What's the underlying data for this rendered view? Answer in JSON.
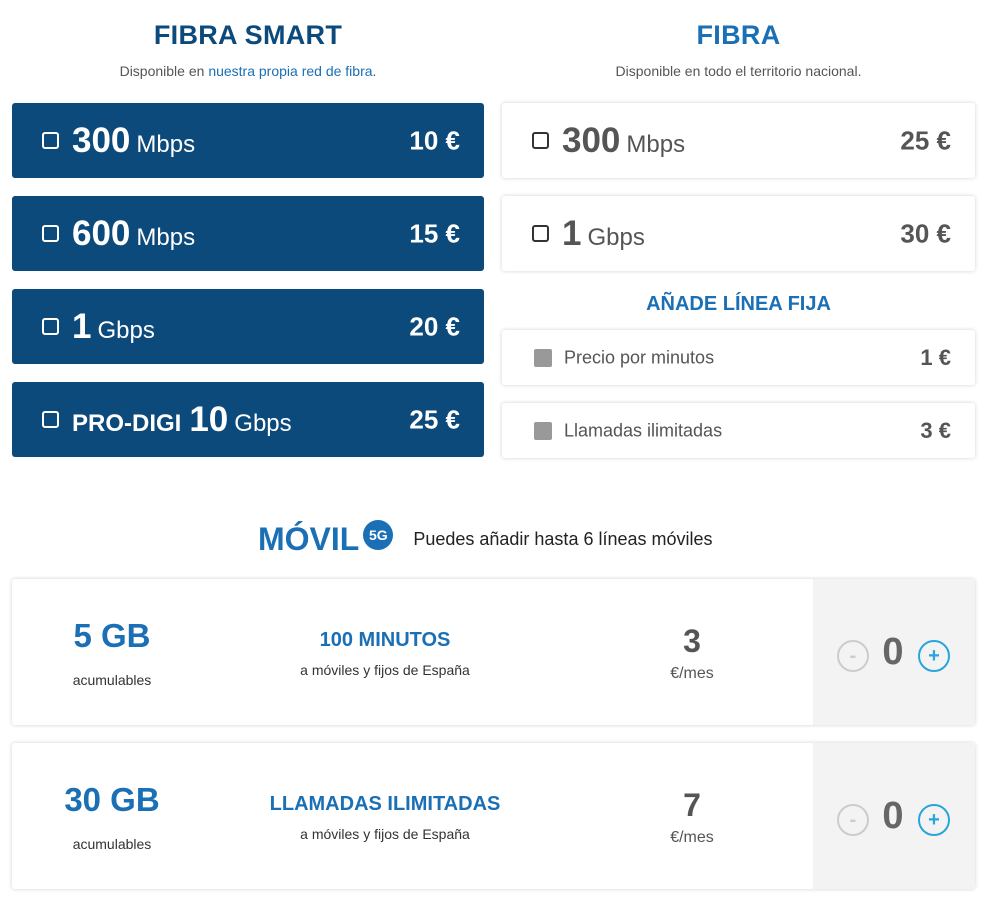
{
  "fibra_smart": {
    "title": "FIBRA SMART",
    "sub_prefix": "Disponible en ",
    "sub_link": "nuestra propia red de fibra",
    "sub_suffix": ".",
    "options": [
      {
        "prefix": "",
        "num": "300",
        "unit": "Mbps",
        "price": "10 €"
      },
      {
        "prefix": "",
        "num": "600",
        "unit": "Mbps",
        "price": "15 €"
      },
      {
        "prefix": "",
        "num": "1",
        "unit": "Gbps",
        "price": "20 €"
      },
      {
        "prefix": "PRO-DIGI",
        "num": "10",
        "unit": "Gbps",
        "price": "25 €"
      }
    ]
  },
  "fibra": {
    "title": "FIBRA",
    "sub": "Disponible en todo el territorio nacional.",
    "options": [
      {
        "num": "300",
        "unit": "Mbps",
        "price": "25 €"
      },
      {
        "num": "1",
        "unit": "Gbps",
        "price": "30 €"
      }
    ]
  },
  "linea_fija": {
    "title": "AÑADE LÍNEA FIJA",
    "options": [
      {
        "label": "Precio por minutos",
        "price": "1 €"
      },
      {
        "label": "Llamadas ilimitadas",
        "price": "3 €"
      }
    ]
  },
  "movil": {
    "title": "MÓVIL",
    "badge": "5G",
    "sub": "Puedes añadir hasta 6 líneas móviles",
    "plans": [
      {
        "data": "5 GB",
        "data_sub": "acumulables",
        "minutes": "100 MINUTOS",
        "minutes_sub": "a móviles y fijos de España",
        "price": "3",
        "price_sub": "€/mes",
        "qty": "0",
        "minus": "-",
        "plus": "+"
      },
      {
        "data": "30 GB",
        "data_sub": "acumulables",
        "minutes": "LLAMADAS ILIMITADAS",
        "minutes_sub": "a móviles y fijos de España",
        "price": "7",
        "price_sub": "€/mes",
        "qty": "0",
        "minus": "-",
        "plus": "+"
      }
    ]
  },
  "colors": {
    "brand_dark": "#0d4a7c",
    "brand_blue": "#1a6fb5",
    "stepper_plus": "#29a4dc"
  }
}
